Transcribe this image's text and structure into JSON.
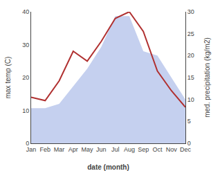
{
  "chart_data": {
    "type": "line",
    "xlabel": "date (month)",
    "ylabel": "max temp (C)",
    "y2label": "med. precipitation (kg/m2)",
    "categories": [
      "Jan",
      "Feb",
      "Mar",
      "Apr",
      "May",
      "Jun",
      "Jul",
      "Aug",
      "Sep",
      "Oct",
      "Nov",
      "Dec"
    ],
    "series": [
      {
        "type": "area",
        "axis": "y2",
        "color": "#c5d0ef",
        "values": [
          8,
          8,
          9,
          13,
          17,
          22,
          29,
          29,
          21,
          20,
          15,
          10
        ]
      },
      {
        "type": "line",
        "color": "#b03030",
        "values": [
          14,
          13,
          19,
          28,
          25,
          31,
          38,
          40,
          34,
          22,
          16,
          11
        ]
      }
    ],
    "ylim": [
      0,
      40
    ],
    "yticks": [
      0,
      10,
      20,
      30,
      40
    ],
    "y2lim": [
      0,
      30
    ],
    "y2ticks": [
      0,
      5,
      10,
      15,
      20,
      25,
      30
    ],
    "grid": false
  }
}
